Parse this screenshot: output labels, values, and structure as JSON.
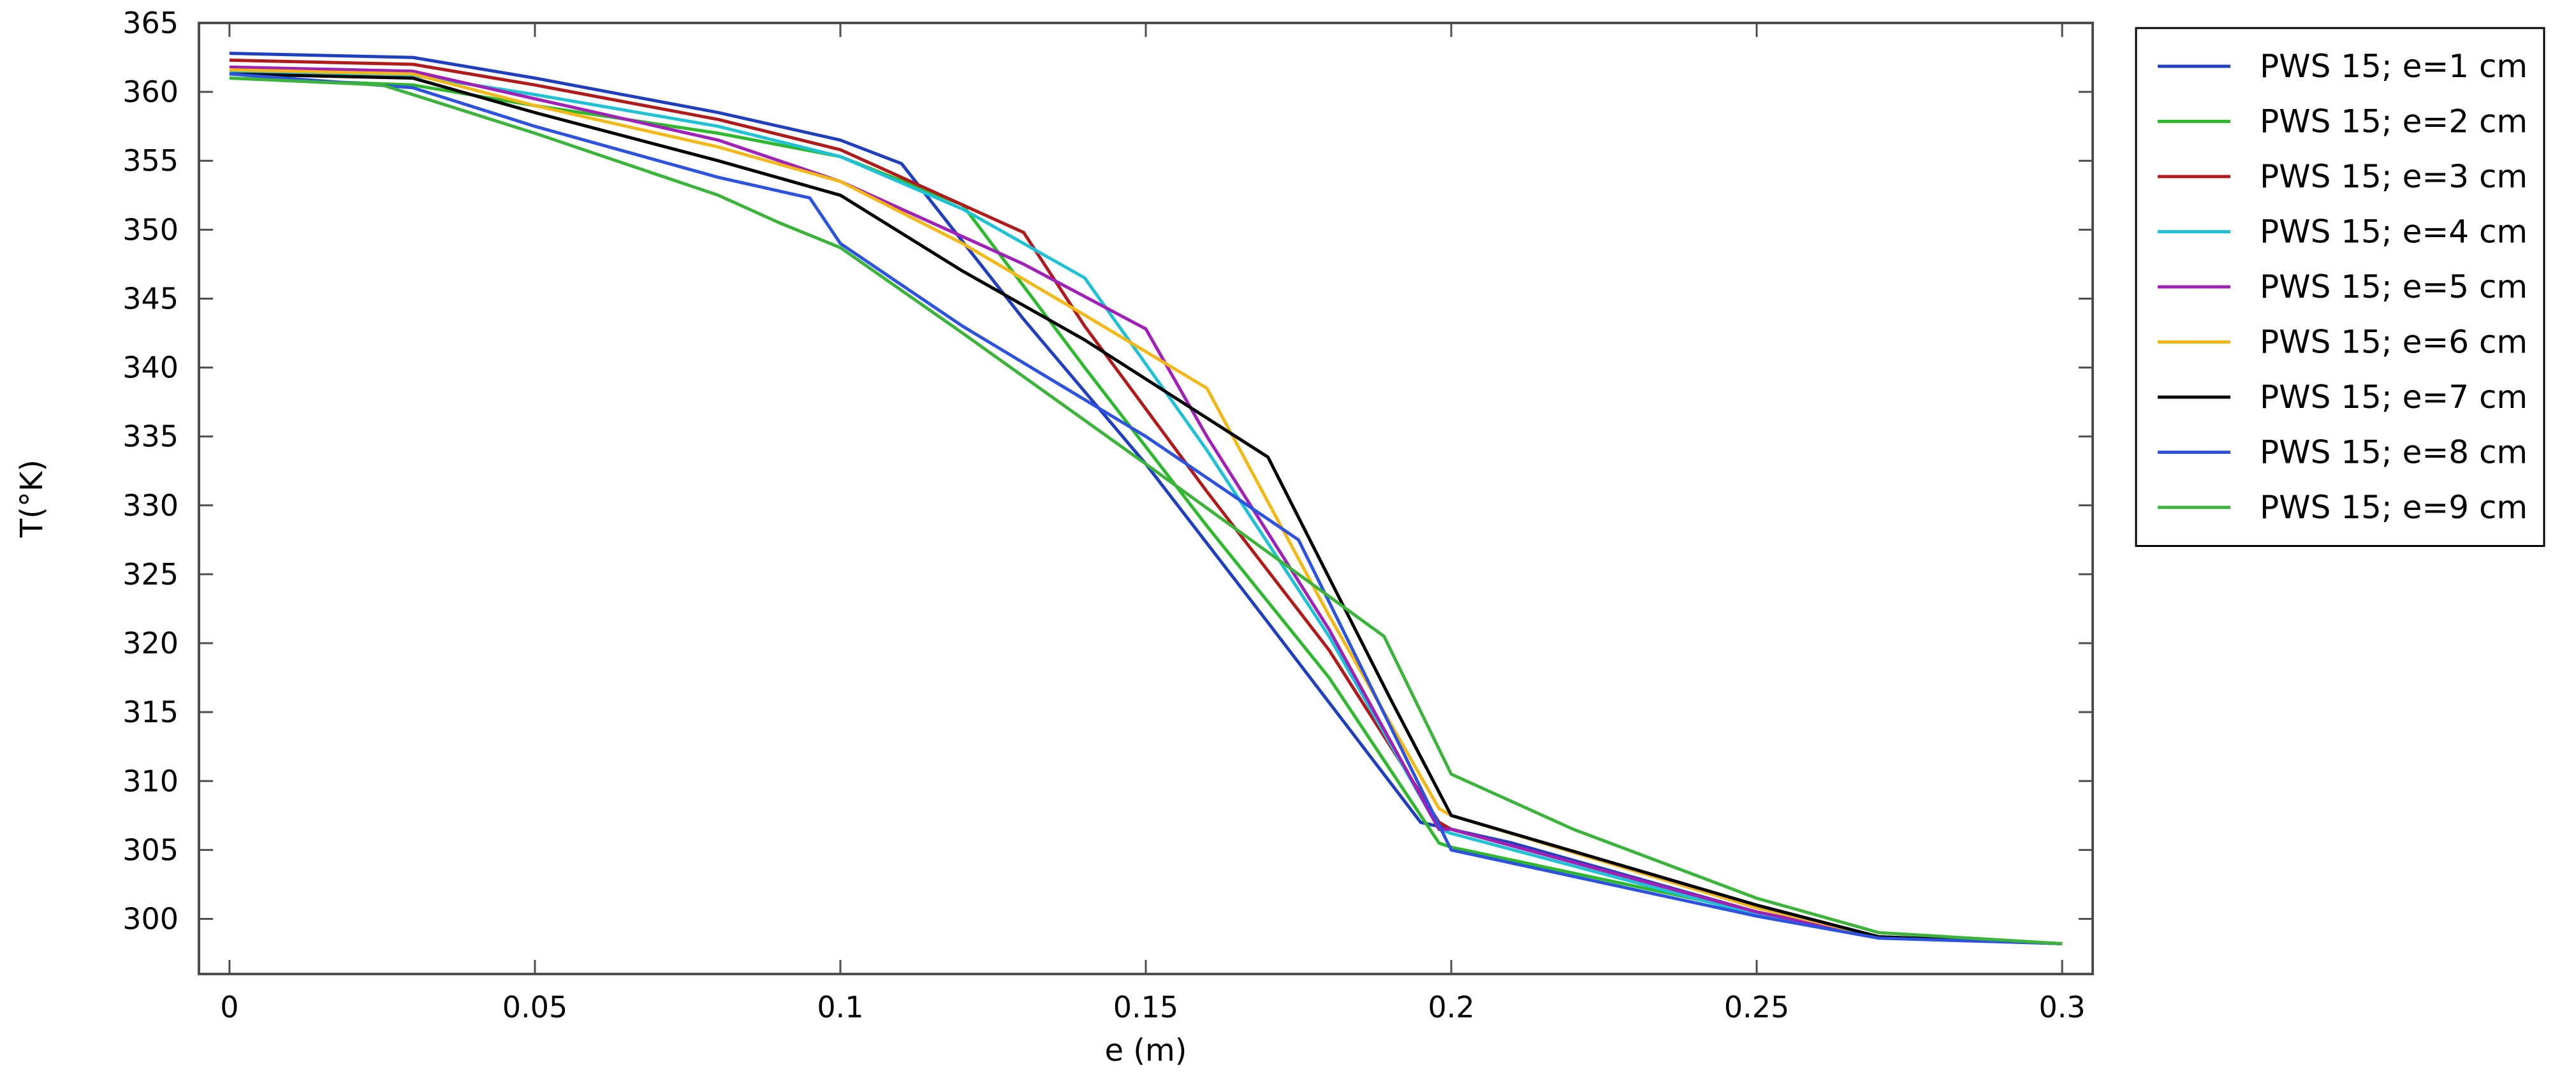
{
  "chart_data": {
    "type": "line",
    "title": "",
    "xlabel": "e (m)",
    "ylabel": "T(°K)",
    "xlim": [
      -0.005,
      0.305
    ],
    "ylim": [
      296,
      365
    ],
    "xticks": [
      0,
      0.05,
      0.1,
      0.15,
      0.2,
      0.25,
      0.3
    ],
    "xtick_labels": [
      "0",
      "0.05",
      "0.1",
      "0.15",
      "0.2",
      "0.25",
      "0.3"
    ],
    "yticks": [
      300,
      305,
      310,
      315,
      320,
      325,
      330,
      335,
      340,
      345,
      350,
      355,
      360,
      365
    ],
    "ytick_labels": [
      "300",
      "305",
      "310",
      "315",
      "320",
      "325",
      "330",
      "335",
      "340",
      "345",
      "350",
      "355",
      "360",
      "365"
    ],
    "grid": false,
    "legend_position": "outside-right",
    "series": [
      {
        "name": "PWS 15; e=1 cm",
        "color": "#1f3fbf",
        "x": [
          0,
          0.03,
          0.05,
          0.08,
          0.1,
          0.11,
          0.13,
          0.15,
          0.17,
          0.195,
          0.2,
          0.21,
          0.25,
          0.27,
          0.3
        ],
        "y": [
          362.8,
          362.5,
          361.0,
          358.5,
          356.5,
          354.8,
          343.5,
          333.0,
          321.5,
          307.0,
          306.5,
          305.5,
          300.5,
          298.7,
          298.2
        ]
      },
      {
        "name": "PWS 15; e=2 cm",
        "color": "#2eb82e",
        "x": [
          0,
          0.03,
          0.05,
          0.08,
          0.1,
          0.12,
          0.14,
          0.16,
          0.18,
          0.198,
          0.2,
          0.25,
          0.27,
          0.3
        ],
        "y": [
          361.0,
          360.5,
          359.0,
          357.0,
          355.3,
          351.8,
          340.0,
          328.5,
          317.5,
          305.5,
          305.2,
          300.5,
          298.7,
          298.2
        ]
      },
      {
        "name": "PWS 15; e=3 cm",
        "color": "#b01a1a",
        "x": [
          0,
          0.03,
          0.05,
          0.08,
          0.1,
          0.13,
          0.14,
          0.16,
          0.18,
          0.198,
          0.2,
          0.25,
          0.27,
          0.3
        ],
        "y": [
          362.3,
          362.0,
          360.5,
          358.0,
          355.8,
          349.8,
          343.0,
          331.0,
          319.5,
          307.0,
          306.5,
          300.5,
          298.7,
          298.2
        ]
      },
      {
        "name": "PWS 15; e=4 cm",
        "color": "#1ec2d4",
        "x": [
          0,
          0.03,
          0.05,
          0.08,
          0.1,
          0.12,
          0.14,
          0.16,
          0.18,
          0.198,
          0.2,
          0.25,
          0.27,
          0.3
        ],
        "y": [
          361.5,
          361.2,
          359.8,
          357.5,
          355.3,
          351.5,
          346.5,
          334.0,
          320.5,
          306.5,
          306.2,
          300.3,
          298.7,
          298.2
        ]
      },
      {
        "name": "PWS 15; e=5 cm",
        "color": "#a020b8",
        "x": [
          0,
          0.03,
          0.05,
          0.08,
          0.1,
          0.13,
          0.15,
          0.16,
          0.18,
          0.198,
          0.2,
          0.25,
          0.27,
          0.3
        ],
        "y": [
          361.8,
          361.5,
          359.5,
          356.5,
          353.5,
          347.5,
          342.8,
          335.0,
          321.0,
          306.5,
          306.5,
          300.5,
          298.7,
          298.2
        ]
      },
      {
        "name": "PWS 15; e=6 cm",
        "color": "#f2b818",
        "x": [
          0,
          0.03,
          0.05,
          0.08,
          0.1,
          0.12,
          0.14,
          0.16,
          0.18,
          0.198,
          0.2,
          0.25,
          0.27,
          0.3
        ],
        "y": [
          361.6,
          361.3,
          359.0,
          356.0,
          353.5,
          349.0,
          343.8,
          338.5,
          322.0,
          308.0,
          307.5,
          300.8,
          298.7,
          298.2
        ]
      },
      {
        "name": "PWS 15; e=7 cm",
        "color": "#000000",
        "x": [
          0,
          0.03,
          0.05,
          0.08,
          0.1,
          0.12,
          0.14,
          0.17,
          0.19,
          0.2,
          0.25,
          0.27,
          0.3
        ],
        "y": [
          361.3,
          361.0,
          358.5,
          355.0,
          352.5,
          347.0,
          342.0,
          333.5,
          316.0,
          307.5,
          301.0,
          298.7,
          298.2
        ]
      },
      {
        "name": "PWS 15; e=8 cm",
        "color": "#2d52e0",
        "x": [
          0,
          0.03,
          0.05,
          0.08,
          0.095,
          0.1,
          0.12,
          0.15,
          0.175,
          0.19,
          0.2,
          0.25,
          0.27,
          0.3
        ],
        "y": [
          361.3,
          360.3,
          357.5,
          353.8,
          352.3,
          349.0,
          343.0,
          335.0,
          327.5,
          314.0,
          305.0,
          300.2,
          298.6,
          298.2
        ]
      },
      {
        "name": "PWS 15; e=9 cm",
        "color": "#3cb43c",
        "x": [
          0,
          0.025,
          0.05,
          0.08,
          0.09,
          0.1,
          0.12,
          0.15,
          0.175,
          0.189,
          0.2,
          0.205,
          0.22,
          0.25,
          0.27,
          0.3
        ],
        "y": [
          361.0,
          360.5,
          357.0,
          352.5,
          350.5,
          348.7,
          342.5,
          333.0,
          325.0,
          320.5,
          310.5,
          309.5,
          306.5,
          301.5,
          299.0,
          298.2
        ]
      }
    ]
  }
}
